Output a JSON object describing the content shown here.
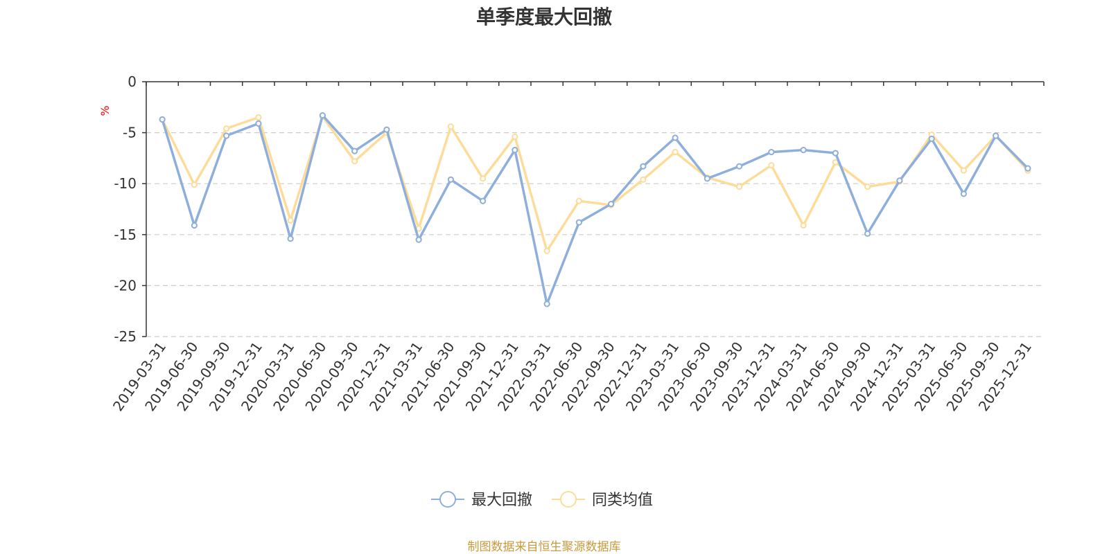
{
  "chart_data": {
    "type": "line",
    "title": "单季度最大回撤",
    "ylabel": "%",
    "ylim": [
      -25,
      0
    ],
    "yticks": [
      0,
      -5,
      -10,
      -15,
      -20,
      -25
    ],
    "grid": "horizontal dashed",
    "legend_position": "bottom-center",
    "categories": [
      "2019-03-31",
      "2019-06-30",
      "2019-09-30",
      "2019-12-31",
      "2020-03-31",
      "2020-06-30",
      "2020-09-30",
      "2020-12-31",
      "2021-03-31",
      "2021-06-30",
      "2021-09-30",
      "2021-12-31",
      "2022-03-31",
      "2022-06-30",
      "2022-09-30",
      "2022-12-31",
      "2023-03-31",
      "2023-06-30",
      "2023-09-30",
      "2023-12-31",
      "2024-03-31",
      "2024-06-30",
      "2024-09-30",
      "2024-12-31",
      "2025-03-31",
      "2025-06-30",
      "2025-09-30",
      "2025-12-31"
    ],
    "series": [
      {
        "name": "最大回撤",
        "color": "#8eaedb",
        "values": [
          -3.7,
          -14.1,
          -5.3,
          -4.1,
          -15.4,
          -3.3,
          -6.8,
          -4.7,
          -15.5,
          -9.6,
          -11.7,
          -6.7,
          -21.8,
          -13.8,
          -12.0,
          -8.3,
          -5.5,
          -9.5,
          -8.3,
          -6.9,
          -6.7,
          -7.0,
          -14.9,
          -9.7,
          -5.6,
          -11.0,
          -5.3,
          -8.5
        ]
      },
      {
        "name": "同类均值",
        "color": "#fddc9a",
        "values": [
          -3.7,
          -10.1,
          -4.6,
          -3.5,
          -13.6,
          -3.4,
          -7.8,
          -5.0,
          -14.4,
          -4.4,
          -9.5,
          -5.4,
          -16.6,
          -11.7,
          -12.1,
          -9.6,
          -6.9,
          -9.4,
          -10.3,
          -8.2,
          -14.1,
          -7.9,
          -10.3,
          -9.8,
          -5.2,
          -8.7,
          -5.3,
          -8.7
        ]
      }
    ]
  },
  "colors": {
    "axis": "#333333",
    "grid": "#cccccc",
    "unit": "#ff0000",
    "source": "#c89a3c"
  },
  "source_text": "制图数据来自恒生聚源数据库"
}
